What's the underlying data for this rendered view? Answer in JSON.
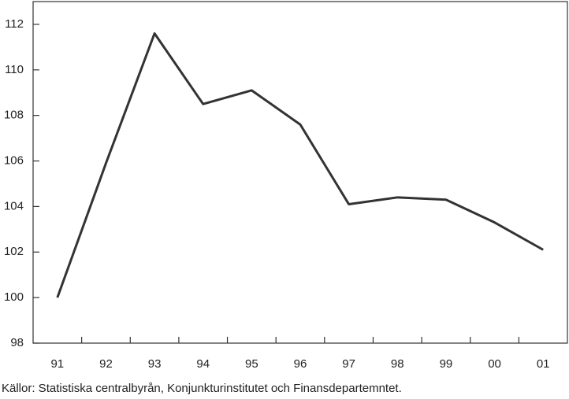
{
  "chart_data": {
    "type": "line",
    "categories": [
      "91",
      "92",
      "93",
      "94",
      "95",
      "96",
      "97",
      "98",
      "99",
      "00",
      "01"
    ],
    "values": [
      100,
      105.9,
      111.6,
      108.5,
      109.1,
      107.6,
      104.1,
      104.4,
      104.3,
      103.3,
      102.1
    ],
    "color": "#333333",
    "ylim": [
      98,
      113
    ],
    "yticks": [
      98,
      100,
      102,
      104,
      106,
      108,
      110,
      112
    ],
    "source": "Källor: Statistiska centralbyrån, Konjunkturinstitutet och Finansdepartemntet."
  }
}
